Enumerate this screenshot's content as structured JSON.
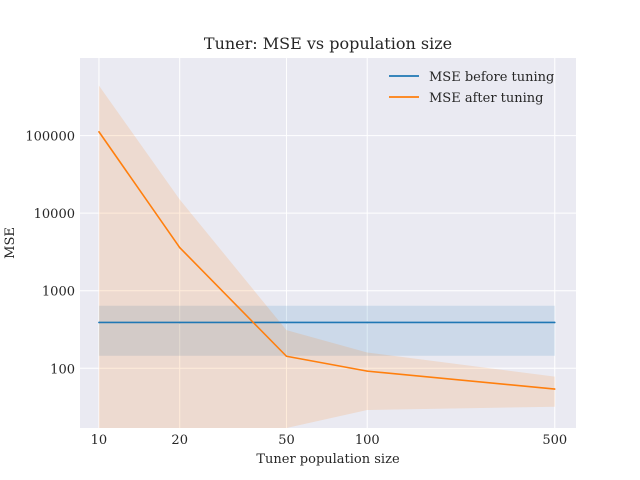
{
  "chart_data": {
    "type": "line",
    "title": "Tuner: MSE vs population size",
    "xlabel": "Tuner population size",
    "ylabel": "MSE",
    "x_scale": "log",
    "y_scale": "log",
    "xlim": [
      8.5,
      600
    ],
    "ylim": [
      17,
      1000000
    ],
    "x_ticks": [
      10,
      20,
      50,
      100,
      500
    ],
    "x_tick_labels": [
      "10",
      "20",
      "50",
      "100",
      "500"
    ],
    "y_ticks": [
      100,
      1000,
      10000,
      100000
    ],
    "y_tick_labels": [
      "100",
      "1000",
      "10000",
      "100000"
    ],
    "grid": true,
    "legend_position": "top-right",
    "series": [
      {
        "name": "MSE before tuning",
        "color": "#1f77b4",
        "x": [
          10,
          20,
          50,
          100,
          500
        ],
        "y": [
          390,
          390,
          390,
          390,
          390
        ],
        "lower": [
          145,
          145,
          145,
          145,
          145
        ],
        "upper": [
          640,
          640,
          640,
          640,
          640
        ]
      },
      {
        "name": "MSE after tuning",
        "color": "#ff7f0e",
        "x": [
          10,
          20,
          50,
          100,
          500
        ],
        "y": [
          112000,
          3600,
          143,
          92,
          54
        ],
        "lower": [
          17,
          17,
          17,
          29,
          32
        ],
        "upper": [
          440000,
          15000,
          310,
          160,
          78
        ]
      }
    ]
  }
}
